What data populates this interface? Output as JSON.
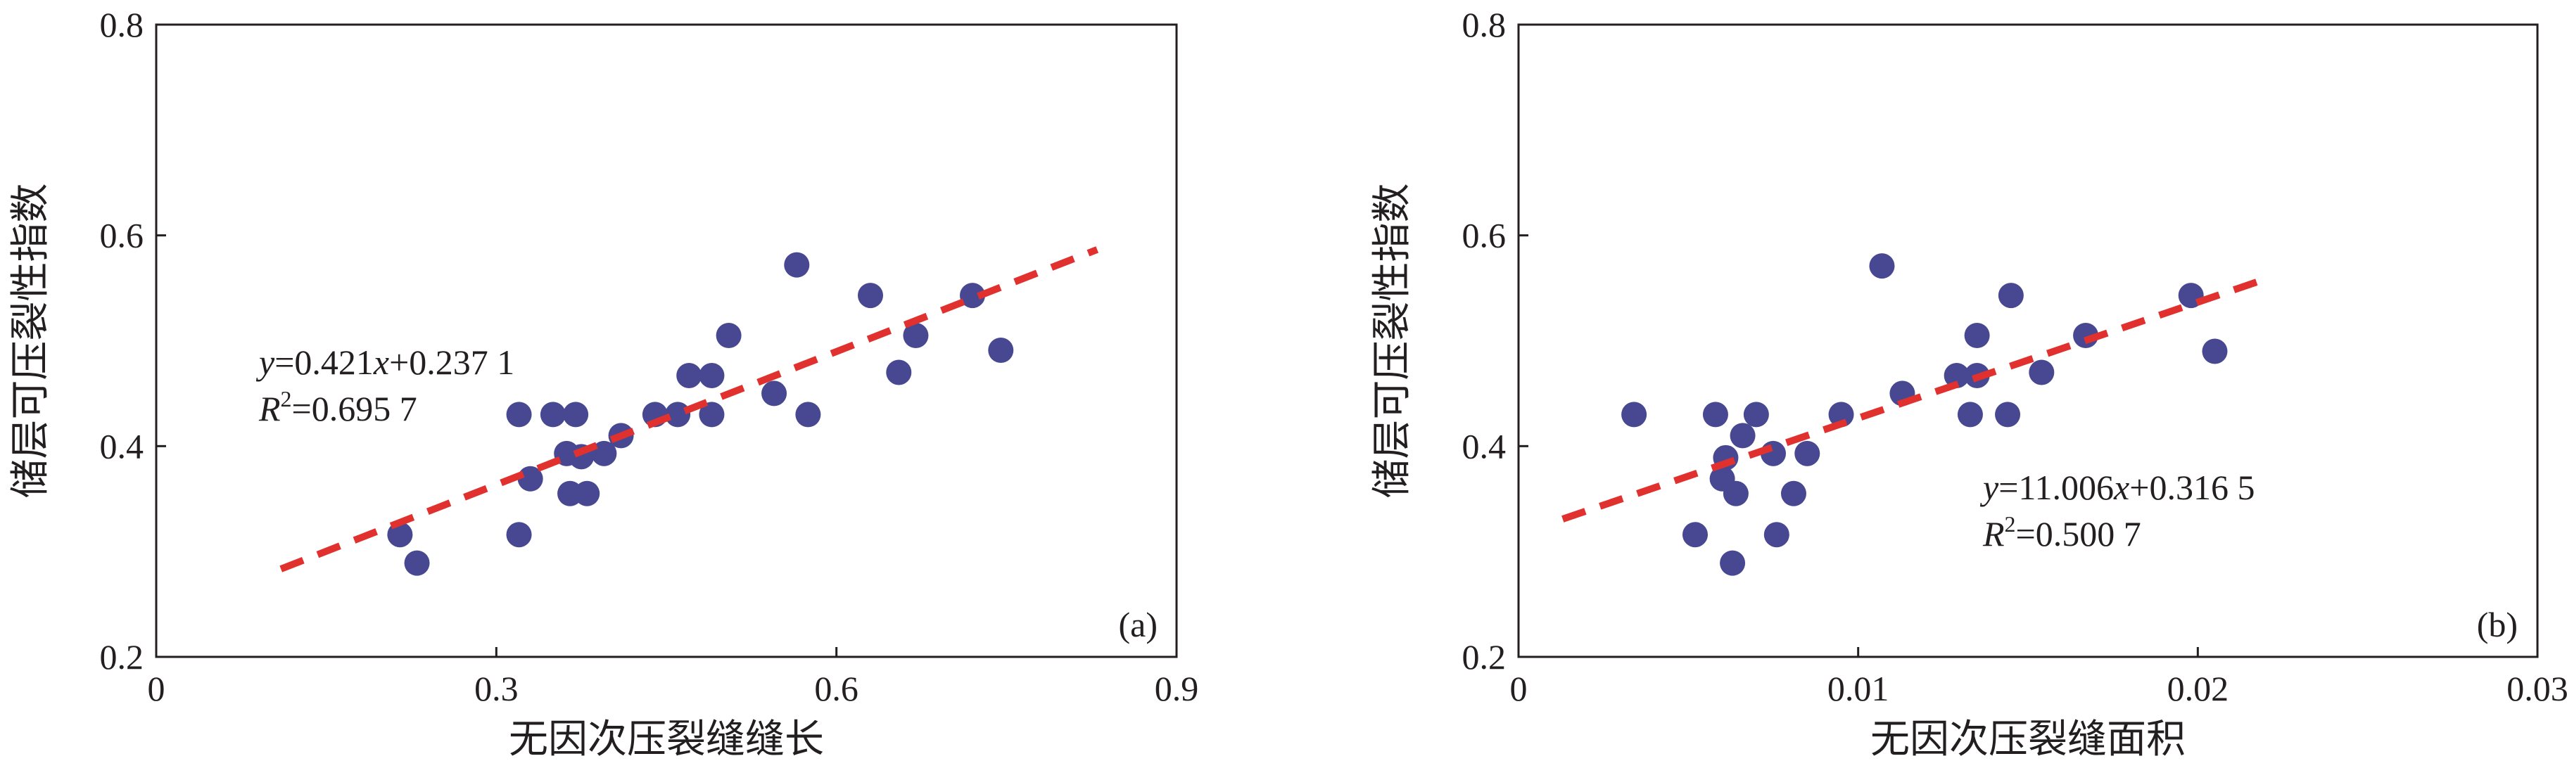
{
  "colors": {
    "points": "#474891",
    "fit_line": "#e0312f",
    "axes": "#231f20"
  },
  "chart_data": [
    {
      "type": "scatter",
      "panel_label": "(a)",
      "xlabel": "无因次压裂缝缝长",
      "ylabel": "储层可压裂性指数",
      "xlim": [
        0,
        0.9
      ],
      "ylim": [
        0.2,
        0.8
      ],
      "xticks": [
        "0",
        "0.3",
        "0.6",
        "0.9"
      ],
      "yticks": [
        "0.2",
        "0.4",
        "0.6",
        "0.8"
      ],
      "grid": false,
      "equation": {
        "y": "y",
        "mid": "=0.421",
        "x": "x",
        "rest": "+0.237 1"
      },
      "r2": {
        "r": "R",
        "sup": "2",
        "rest": "=0.695 7"
      },
      "fit": {
        "slope": 0.421,
        "intercept": 0.2371,
        "x_range": [
          0.11,
          0.83
        ]
      },
      "points": [
        [
          0.215,
          0.316
        ],
        [
          0.23,
          0.289
        ],
        [
          0.32,
          0.316
        ],
        [
          0.32,
          0.43
        ],
        [
          0.33,
          0.369
        ],
        [
          0.35,
          0.43
        ],
        [
          0.362,
          0.393
        ],
        [
          0.365,
          0.355
        ],
        [
          0.37,
          0.43
        ],
        [
          0.375,
          0.39
        ],
        [
          0.38,
          0.355
        ],
        [
          0.395,
          0.393
        ],
        [
          0.41,
          0.41
        ],
        [
          0.44,
          0.43
        ],
        [
          0.46,
          0.43
        ],
        [
          0.47,
          0.467
        ],
        [
          0.49,
          0.467
        ],
        [
          0.49,
          0.43
        ],
        [
          0.505,
          0.505
        ],
        [
          0.545,
          0.45
        ],
        [
          0.565,
          0.572
        ],
        [
          0.575,
          0.43
        ],
        [
          0.63,
          0.543
        ],
        [
          0.655,
          0.47
        ],
        [
          0.67,
          0.505
        ],
        [
          0.72,
          0.543
        ],
        [
          0.745,
          0.491
        ]
      ]
    },
    {
      "type": "scatter",
      "panel_label": "(b)",
      "xlabel": "无因次压裂缝面积",
      "ylabel": "储层可压裂性指数",
      "xlim": [
        0,
        0.03
      ],
      "ylim": [
        0.2,
        0.8
      ],
      "xticks": [
        "0",
        "0.01",
        "0.02",
        "0.03"
      ],
      "yticks": [
        "0.2",
        "0.4",
        "0.6",
        "0.8"
      ],
      "grid": false,
      "equation": {
        "y": "y",
        "mid": "=11.006",
        "x": "x",
        "rest": "+0.316 5"
      },
      "r2": {
        "r": "R",
        "sup": "2",
        "rest": "=0.500 7"
      },
      "fit": {
        "slope": 11.006,
        "intercept": 0.3165,
        "x_range": [
          0.0013,
          0.022
        ]
      },
      "points": [
        [
          0.0034,
          0.43
        ],
        [
          0.0052,
          0.316
        ],
        [
          0.0058,
          0.43
        ],
        [
          0.006,
          0.369
        ],
        [
          0.0061,
          0.389
        ],
        [
          0.0063,
          0.289
        ],
        [
          0.0064,
          0.355
        ],
        [
          0.0066,
          0.41
        ],
        [
          0.007,
          0.43
        ],
        [
          0.0075,
          0.393
        ],
        [
          0.0076,
          0.316
        ],
        [
          0.0081,
          0.355
        ],
        [
          0.0085,
          0.393
        ],
        [
          0.0095,
          0.43
        ],
        [
          0.0107,
          0.571
        ],
        [
          0.0113,
          0.45
        ],
        [
          0.0129,
          0.467
        ],
        [
          0.0133,
          0.43
        ],
        [
          0.0135,
          0.505
        ],
        [
          0.0135,
          0.467
        ],
        [
          0.0144,
          0.43
        ],
        [
          0.0145,
          0.543
        ],
        [
          0.0154,
          0.47
        ],
        [
          0.0167,
          0.505
        ],
        [
          0.0198,
          0.543
        ],
        [
          0.0205,
          0.49
        ]
      ]
    }
  ]
}
